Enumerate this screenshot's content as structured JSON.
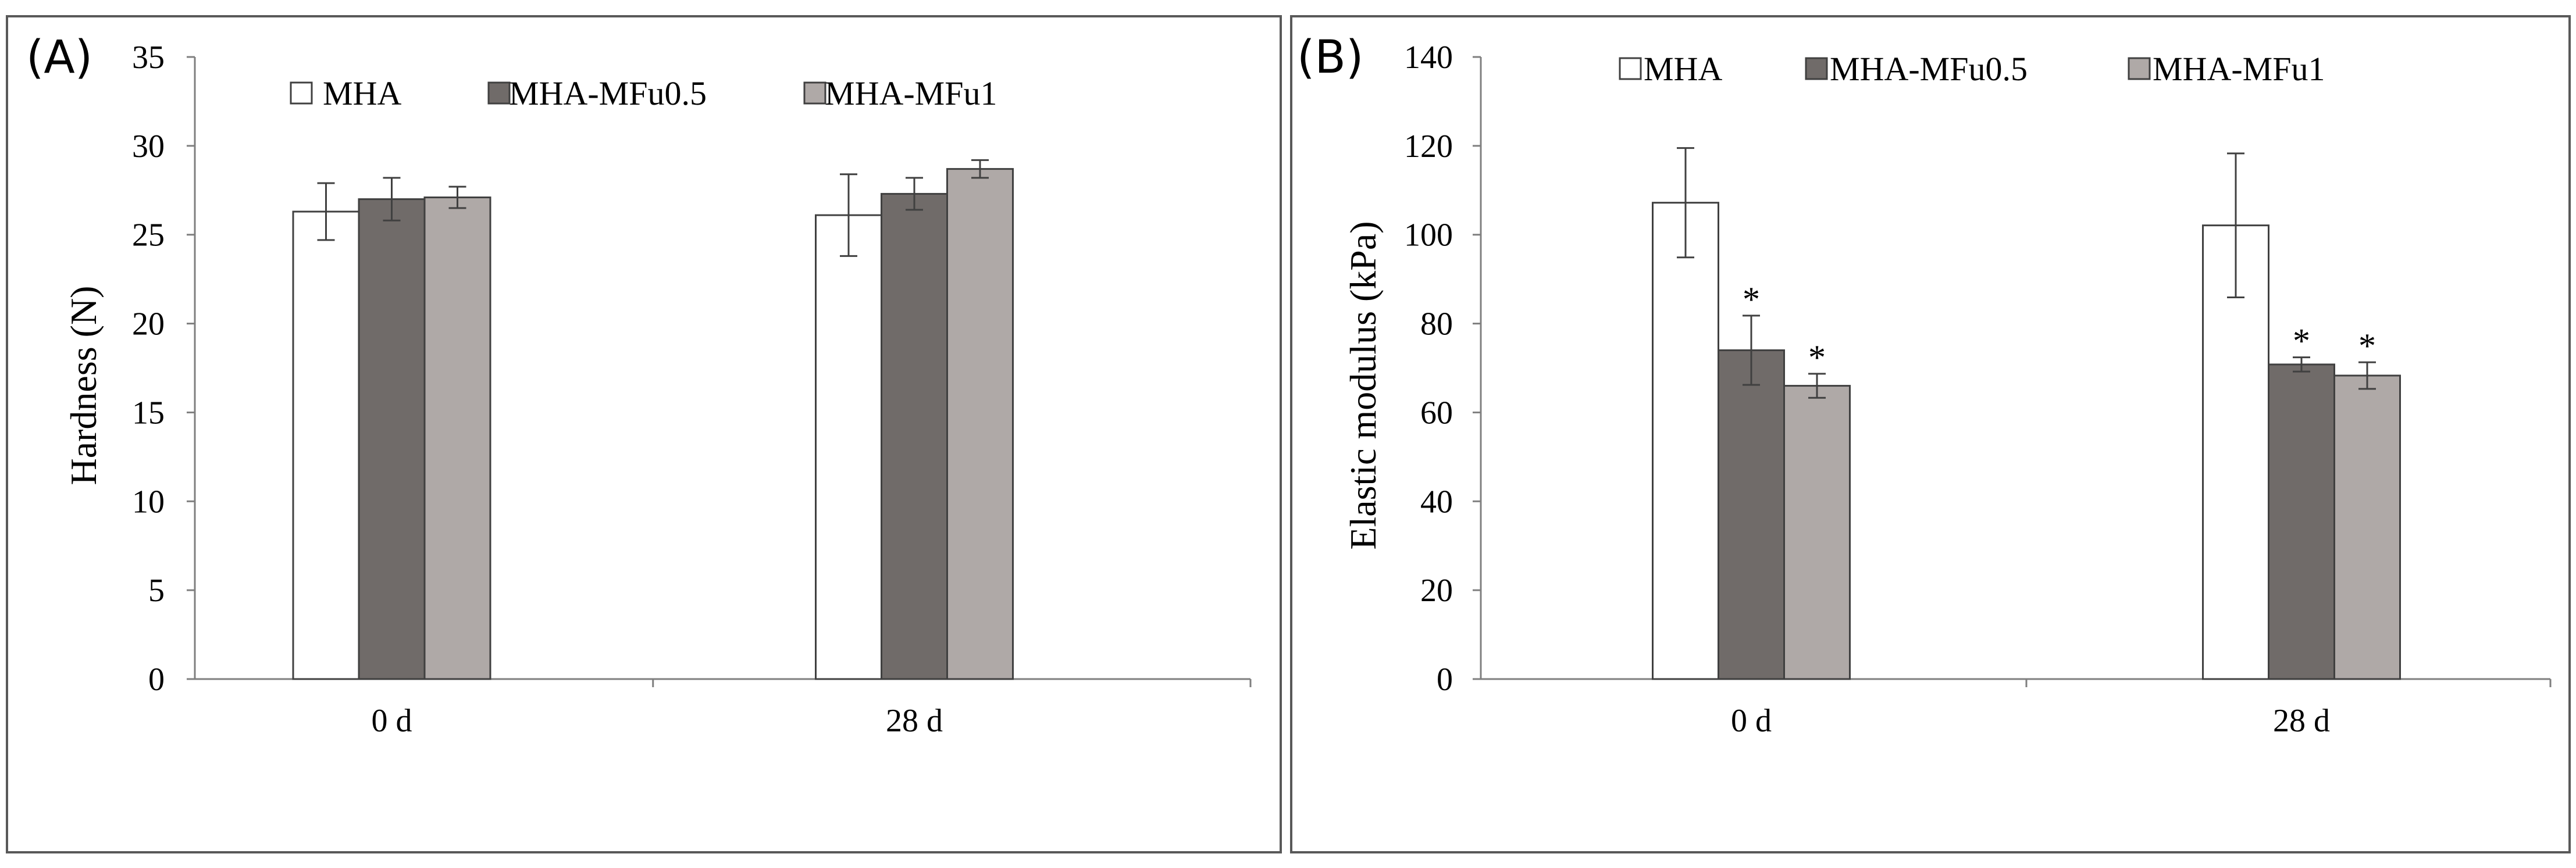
{
  "colors": {
    "MHA": "#ffffff",
    "MHA-MFu0.5": "#706b69",
    "MHA-MFu1": "#afa9a7"
  },
  "chart_data": [
    {
      "panel": "(A)",
      "type": "bar",
      "title": "",
      "xlabel": "",
      "ylabel": "Hardness (N)",
      "ylim": [
        0,
        35
      ],
      "yticks": [
        "0",
        "5",
        "10",
        "15",
        "20",
        "25",
        "30",
        "35"
      ],
      "categories": [
        "0 d",
        "28 d"
      ],
      "legend_position": "top",
      "series": [
        {
          "name": "MHA",
          "values": [
            26.3,
            26.1
          ],
          "errors": [
            1.6,
            2.3
          ],
          "significance": [
            "",
            ""
          ]
        },
        {
          "name": "MHA-MFu0.5",
          "values": [
            27.0,
            27.3
          ],
          "errors": [
            1.2,
            0.9
          ],
          "significance": [
            "",
            ""
          ]
        },
        {
          "name": "MHA-MFu1",
          "values": [
            27.1,
            28.7
          ],
          "errors": [
            0.6,
            0.5
          ],
          "significance": [
            "",
            ""
          ]
        }
      ]
    },
    {
      "panel": "(B)",
      "type": "bar",
      "title": "",
      "xlabel": "",
      "ylabel": "Elastic modulus (kPa)",
      "ylim": [
        0,
        140
      ],
      "yticks": [
        "0",
        "20",
        "40",
        "60",
        "80",
        "100",
        "120",
        "140"
      ],
      "categories": [
        "0 d",
        "28 d"
      ],
      "legend_position": "top",
      "series": [
        {
          "name": "MHA",
          "values": [
            107.2,
            102.1
          ],
          "errors": [
            12.3,
            16.2
          ],
          "significance": [
            "",
            ""
          ]
        },
        {
          "name": "MHA-MFu0.5",
          "values": [
            74.0,
            70.8
          ],
          "errors": [
            7.8,
            1.6
          ],
          "significance": [
            "*",
            "*"
          ]
        },
        {
          "name": "MHA-MFu1",
          "values": [
            66.0,
            68.3
          ],
          "errors": [
            2.7,
            3.0
          ],
          "significance": [
            "*",
            "*"
          ]
        }
      ]
    }
  ]
}
